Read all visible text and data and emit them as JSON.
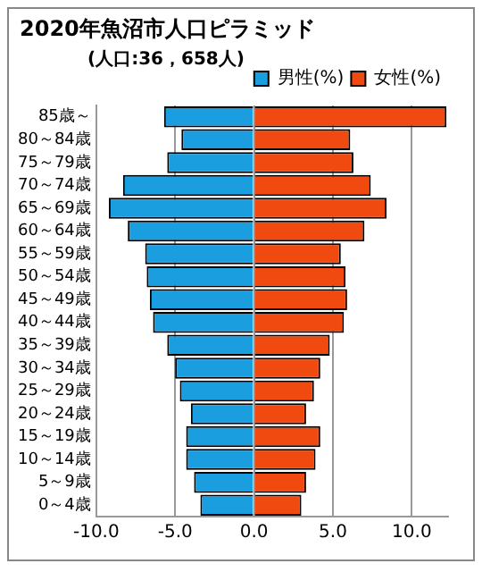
{
  "chart_data": {
    "type": "bar",
    "orientation": "horizontal",
    "stacked": true,
    "title": "2020年魚沼市人口ピラミッド",
    "subtitle": "(人口:36，658人)",
    "categories": [
      "85歳～",
      "80～84歳",
      "75～79歳",
      "70～74歳",
      "65～69歳",
      "60～64歳",
      "55～59歳",
      "50～54歳",
      "45～49歳",
      "40～44歳",
      "35～39歳",
      "30～34歳",
      "25～29歳",
      "20～24歳",
      "15～19歳",
      "10～14歳",
      "5～9歳",
      "0～4歳"
    ],
    "series": [
      {
        "name": "男性(%)",
        "color": "#1a9ee0",
        "values": [
          -5.7,
          -4.6,
          -5.5,
          -8.3,
          -9.2,
          -8.0,
          -6.9,
          -6.8,
          -6.6,
          -6.4,
          -5.5,
          -5.0,
          -4.7,
          -4.0,
          -4.3,
          -4.3,
          -3.8,
          -3.4
        ]
      },
      {
        "name": "女性(%)",
        "color": "#f04a10",
        "values": [
          12.2,
          6.1,
          6.3,
          7.4,
          8.4,
          7.0,
          5.5,
          5.8,
          5.9,
          5.7,
          4.8,
          4.2,
          3.8,
          3.3,
          4.2,
          3.9,
          3.3,
          3.0
        ]
      }
    ],
    "xlim": [
      -10,
      12.3
    ],
    "xticks": [
      {
        "value": -10,
        "label": "-10.0"
      },
      {
        "value": -5,
        "label": "-5.0"
      },
      {
        "value": 0,
        "label": "0.0"
      },
      {
        "value": 5,
        "label": "5.0"
      },
      {
        "value": 10,
        "label": "10.0"
      }
    ],
    "grid": "x",
    "legend": "top right"
  }
}
